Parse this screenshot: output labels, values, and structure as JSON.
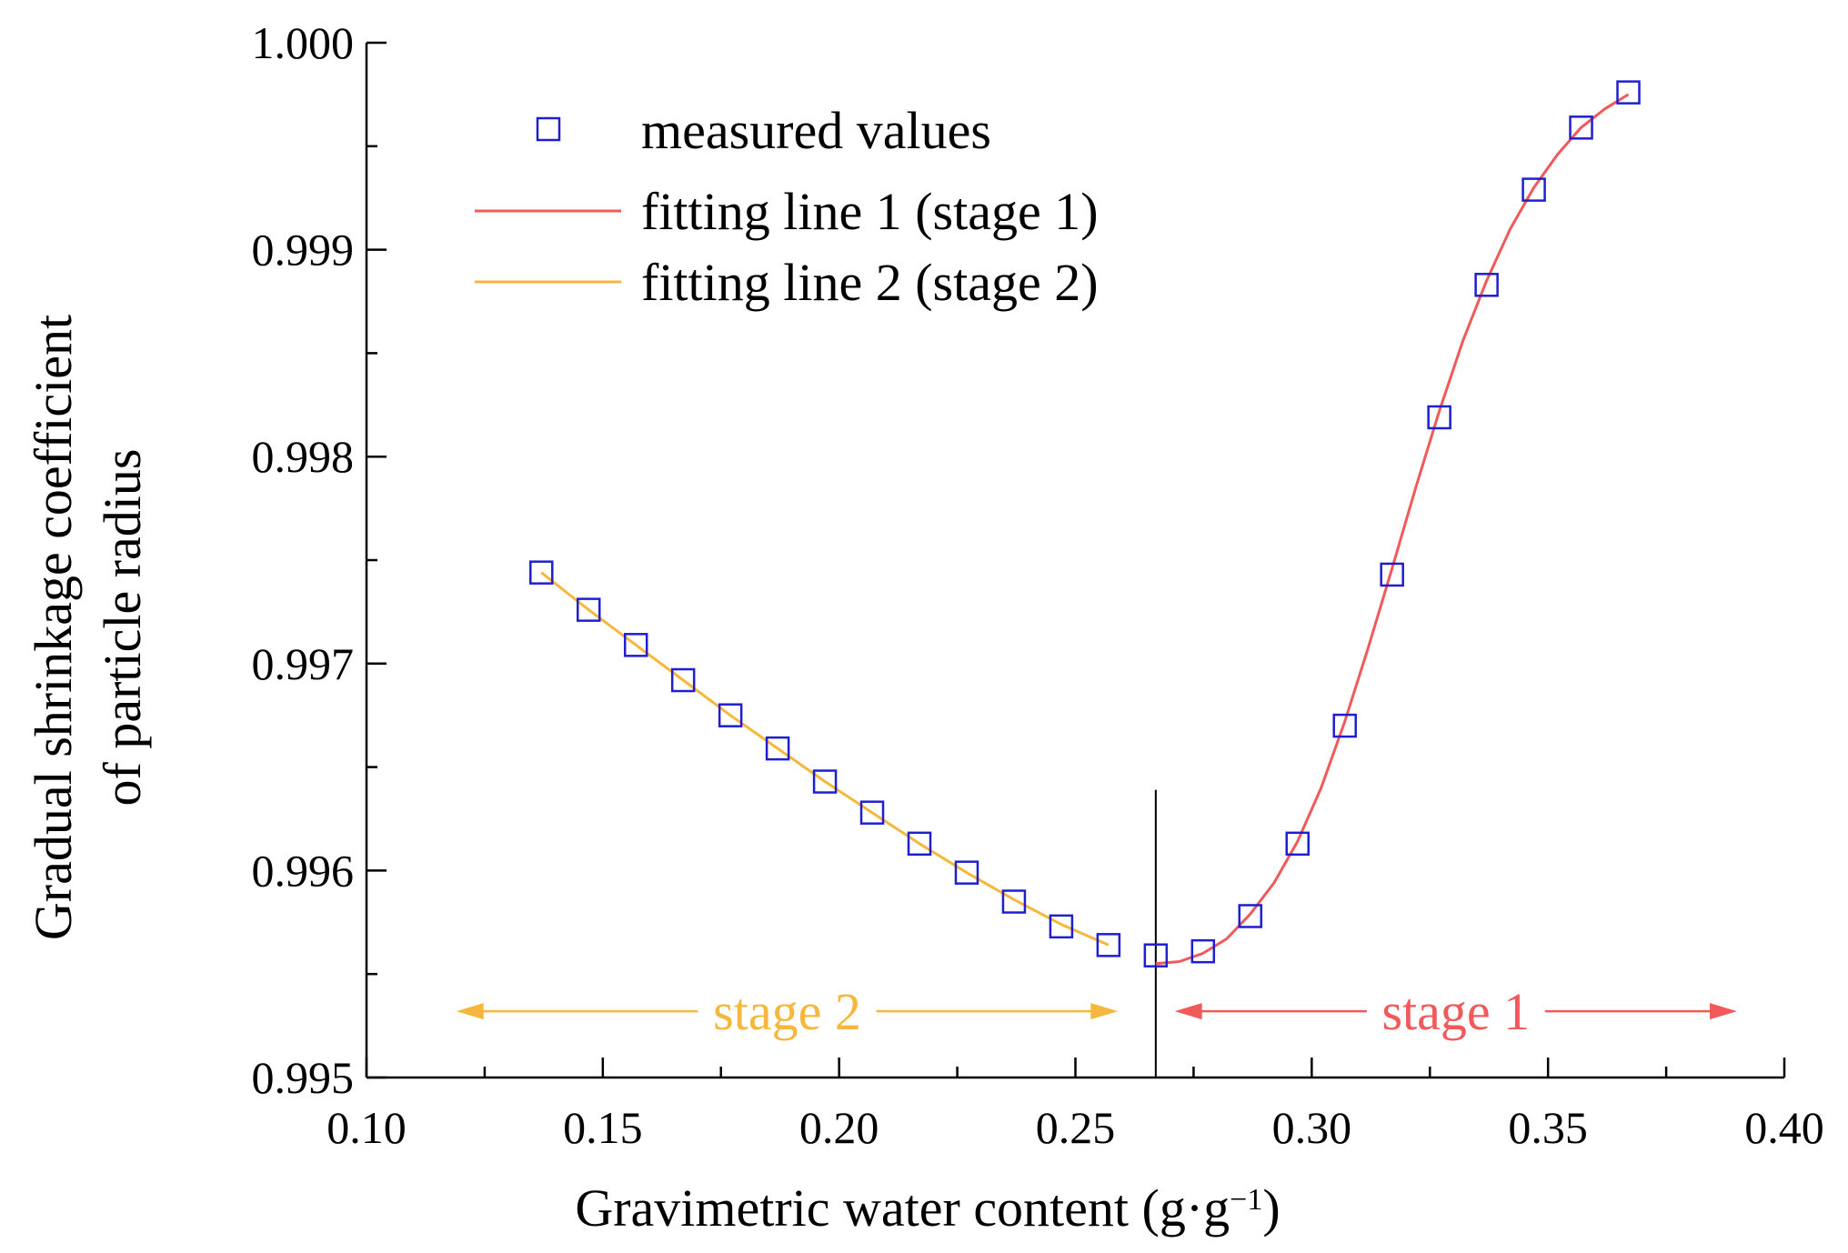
{
  "chart_data": {
    "type": "scatter",
    "xlabel": "Gravimetric water content  (g·g",
    "xlabel_sup": "−1",
    "xlabel_close": ")",
    "ylabel_line1": "Gradual shrinkage coefficient",
    "ylabel_line2": "of particle radius",
    "xlim": [
      0.1,
      0.4
    ],
    "ylim": [
      0.995,
      1.0
    ],
    "x_ticks": [
      0.1,
      0.15,
      0.2,
      0.25,
      0.3,
      0.35,
      0.4
    ],
    "x_tick_labels": [
      "0.10",
      "0.15",
      "0.20",
      "0.25",
      "0.30",
      "0.35",
      "0.40"
    ],
    "y_ticks": [
      0.995,
      0.996,
      0.997,
      0.998,
      0.999,
      1.0
    ],
    "y_tick_labels": [
      "0.995",
      "0.996",
      "0.997",
      "0.998",
      "0.999",
      "1.000"
    ],
    "grid": false,
    "legend_position": "top-left",
    "legend": [
      {
        "label": "measured values",
        "kind": "marker",
        "color": "#1f1fd0"
      },
      {
        "label": "fitting line 1 (stage 1)",
        "kind": "line",
        "color": "#f05a5a"
      },
      {
        "label": "fitting line 2 (stage 2)",
        "kind": "line",
        "color": "#f5b83d"
      }
    ],
    "series": [
      {
        "name": "measured values",
        "kind": "marker",
        "color": "#1f1fd0",
        "points": [
          [
            0.137,
            0.99744
          ],
          [
            0.147,
            0.99726
          ],
          [
            0.157,
            0.99709
          ],
          [
            0.167,
            0.99692
          ],
          [
            0.177,
            0.99675
          ],
          [
            0.187,
            0.99659
          ],
          [
            0.197,
            0.99643
          ],
          [
            0.207,
            0.99628
          ],
          [
            0.217,
            0.99613
          ],
          [
            0.227,
            0.99599
          ],
          [
            0.237,
            0.99585
          ],
          [
            0.247,
            0.99573
          ],
          [
            0.257,
            0.99564
          ],
          [
            0.267,
            0.99559
          ],
          [
            0.277,
            0.99561
          ],
          [
            0.287,
            0.99578
          ],
          [
            0.297,
            0.99613
          ],
          [
            0.307,
            0.9967
          ],
          [
            0.317,
            0.99743
          ],
          [
            0.327,
            0.99819
          ],
          [
            0.337,
            0.99883
          ],
          [
            0.347,
            0.99929
          ],
          [
            0.357,
            0.99959
          ],
          [
            0.367,
            0.99976
          ]
        ]
      },
      {
        "name": "fitting line 1 (stage 1)",
        "kind": "line",
        "color": "#f05a5a",
        "points": [
          [
            0.267,
            0.99555
          ],
          [
            0.272,
            0.99556
          ],
          [
            0.277,
            0.9956
          ],
          [
            0.282,
            0.99567
          ],
          [
            0.287,
            0.99579
          ],
          [
            0.292,
            0.99594
          ],
          [
            0.297,
            0.99614
          ],
          [
            0.302,
            0.9964
          ],
          [
            0.307,
            0.99672
          ],
          [
            0.312,
            0.99708
          ],
          [
            0.317,
            0.99746
          ],
          [
            0.322,
            0.99785
          ],
          [
            0.327,
            0.99822
          ],
          [
            0.332,
            0.99856
          ],
          [
            0.337,
            0.99885
          ],
          [
            0.342,
            0.9991
          ],
          [
            0.347,
            0.9993
          ],
          [
            0.352,
            0.99946
          ],
          [
            0.357,
            0.99959
          ],
          [
            0.362,
            0.99968
          ],
          [
            0.367,
            0.99975
          ]
        ]
      },
      {
        "name": "fitting line 2 (stage 2)",
        "kind": "line",
        "color": "#f5b83d",
        "points": [
          [
            0.137,
            0.99744
          ],
          [
            0.147,
            0.99726
          ],
          [
            0.157,
            0.99709
          ],
          [
            0.167,
            0.99692
          ],
          [
            0.177,
            0.99675
          ],
          [
            0.187,
            0.99659
          ],
          [
            0.197,
            0.99643
          ],
          [
            0.207,
            0.99628
          ],
          [
            0.217,
            0.99613
          ],
          [
            0.227,
            0.99599
          ],
          [
            0.237,
            0.99586
          ],
          [
            0.247,
            0.99574
          ],
          [
            0.257,
            0.99564
          ]
        ]
      }
    ],
    "annotations": {
      "divider_x": 0.267,
      "divider_top_y": 0.99639,
      "stage2": {
        "label": "stage 2",
        "color": "#f5b83d",
        "x_from": 0.119,
        "x_to": 0.259,
        "y": 0.99532
      },
      "stage1": {
        "label": "stage 1",
        "color": "#f05a5a",
        "x_from": 0.271,
        "x_to": 0.39,
        "y": 0.99532
      }
    }
  }
}
